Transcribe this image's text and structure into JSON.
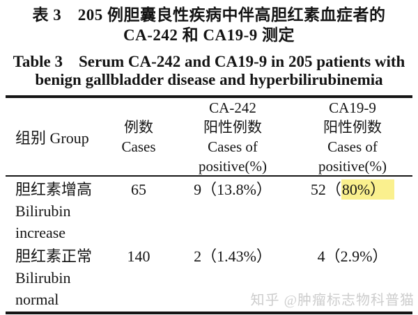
{
  "colors": {
    "highlight": "#FAF08E",
    "watermark": "#cdcdcd",
    "text": "#141414",
    "rule": "#151515"
  },
  "title": {
    "zh_line1": "表 3　205 例胆囊良性疾病中伴高胆红素血症者的",
    "zh_line2": "CA-242 和 CA19-9 测定",
    "en_line1": "Table 3　Serum CA-242 and CA19-9 in 205 patients with",
    "en_line2": "benign gallbladder disease and hyperbilirubinemia"
  },
  "table": {
    "header": {
      "group": "组别 Group",
      "cases": [
        "例数",
        "Cases"
      ],
      "ca242": [
        "CA-242",
        "阳性例数",
        "Cases of",
        "positive(%)"
      ],
      "ca199": [
        "CA19-9",
        "阳性例数",
        "Cases of",
        "positive(%)"
      ]
    },
    "rows": [
      {
        "group": [
          "胆红素增高",
          "Bilirubin",
          "increase"
        ],
        "cases": "65",
        "ca242": "9（13.8%）",
        "ca199_pre": "52（",
        "ca199_hl": "80%）"
      },
      {
        "group": [
          "胆红素正常",
          "Bilirubin",
          "normal"
        ],
        "cases": "140",
        "ca242": "2（1.43%）",
        "ca199_pre": "4（2.9%）",
        "ca199_hl": ""
      }
    ]
  },
  "watermark": {
    "text": "知乎 @肿瘤标志物科普猫"
  }
}
